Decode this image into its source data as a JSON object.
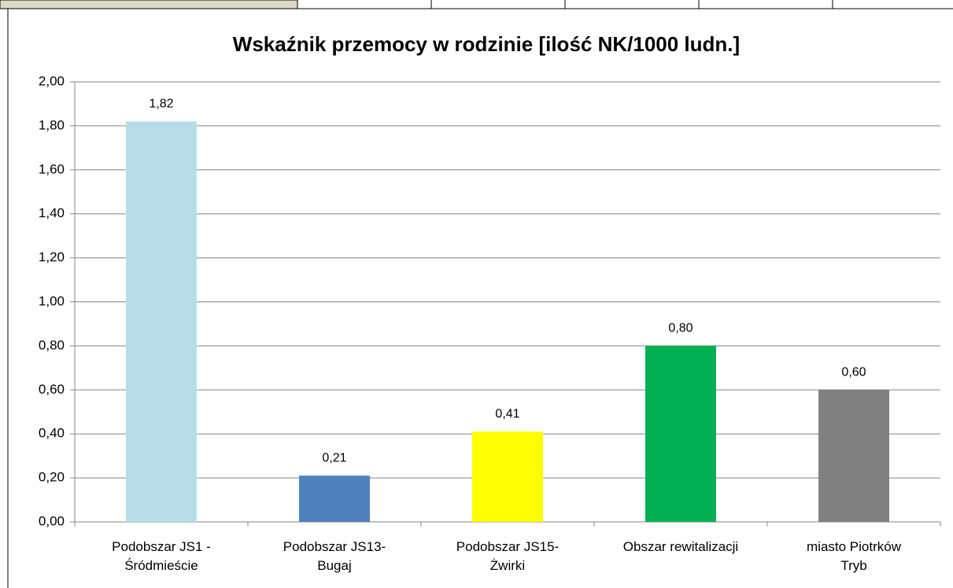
{
  "chart_data": {
    "type": "bar",
    "title": "Wskaźnik przemocy w rodzinie [ilość NK/1000 ludn.]",
    "categories": [
      "Podobszar JS1 -\nŚródmieście",
      "Podobszar JS13-\nBugaj",
      "Podobszar JS15-\nŻwirki",
      "Obszar rewitalizacji",
      "miasto Piotrków\nTryb"
    ],
    "values": [
      1.82,
      0.21,
      0.41,
      0.8,
      0.6
    ],
    "value_labels": [
      "1,82",
      "0,21",
      "0,41",
      "0,80",
      "0,60"
    ],
    "colors": [
      "#b7dde8",
      "#4f81bd",
      "#ffff00",
      "#00b050",
      "#808080"
    ],
    "ylim": [
      0,
      2
    ],
    "yticks": [
      {
        "value": 0,
        "label": "0,00"
      },
      {
        "value": 0.2,
        "label": "0,20"
      },
      {
        "value": 0.4,
        "label": "0,40"
      },
      {
        "value": 0.6,
        "label": "0,60"
      },
      {
        "value": 0.8,
        "label": "0,80"
      },
      {
        "value": 1,
        "label": "1,00"
      },
      {
        "value": 1.2,
        "label": "1,20"
      },
      {
        "value": 1.4,
        "label": "1,40"
      },
      {
        "value": 1.6,
        "label": "1,60"
      },
      {
        "value": 1.8,
        "label": "1,80"
      },
      {
        "value": 2,
        "label": "2,00"
      }
    ],
    "grid": true
  }
}
